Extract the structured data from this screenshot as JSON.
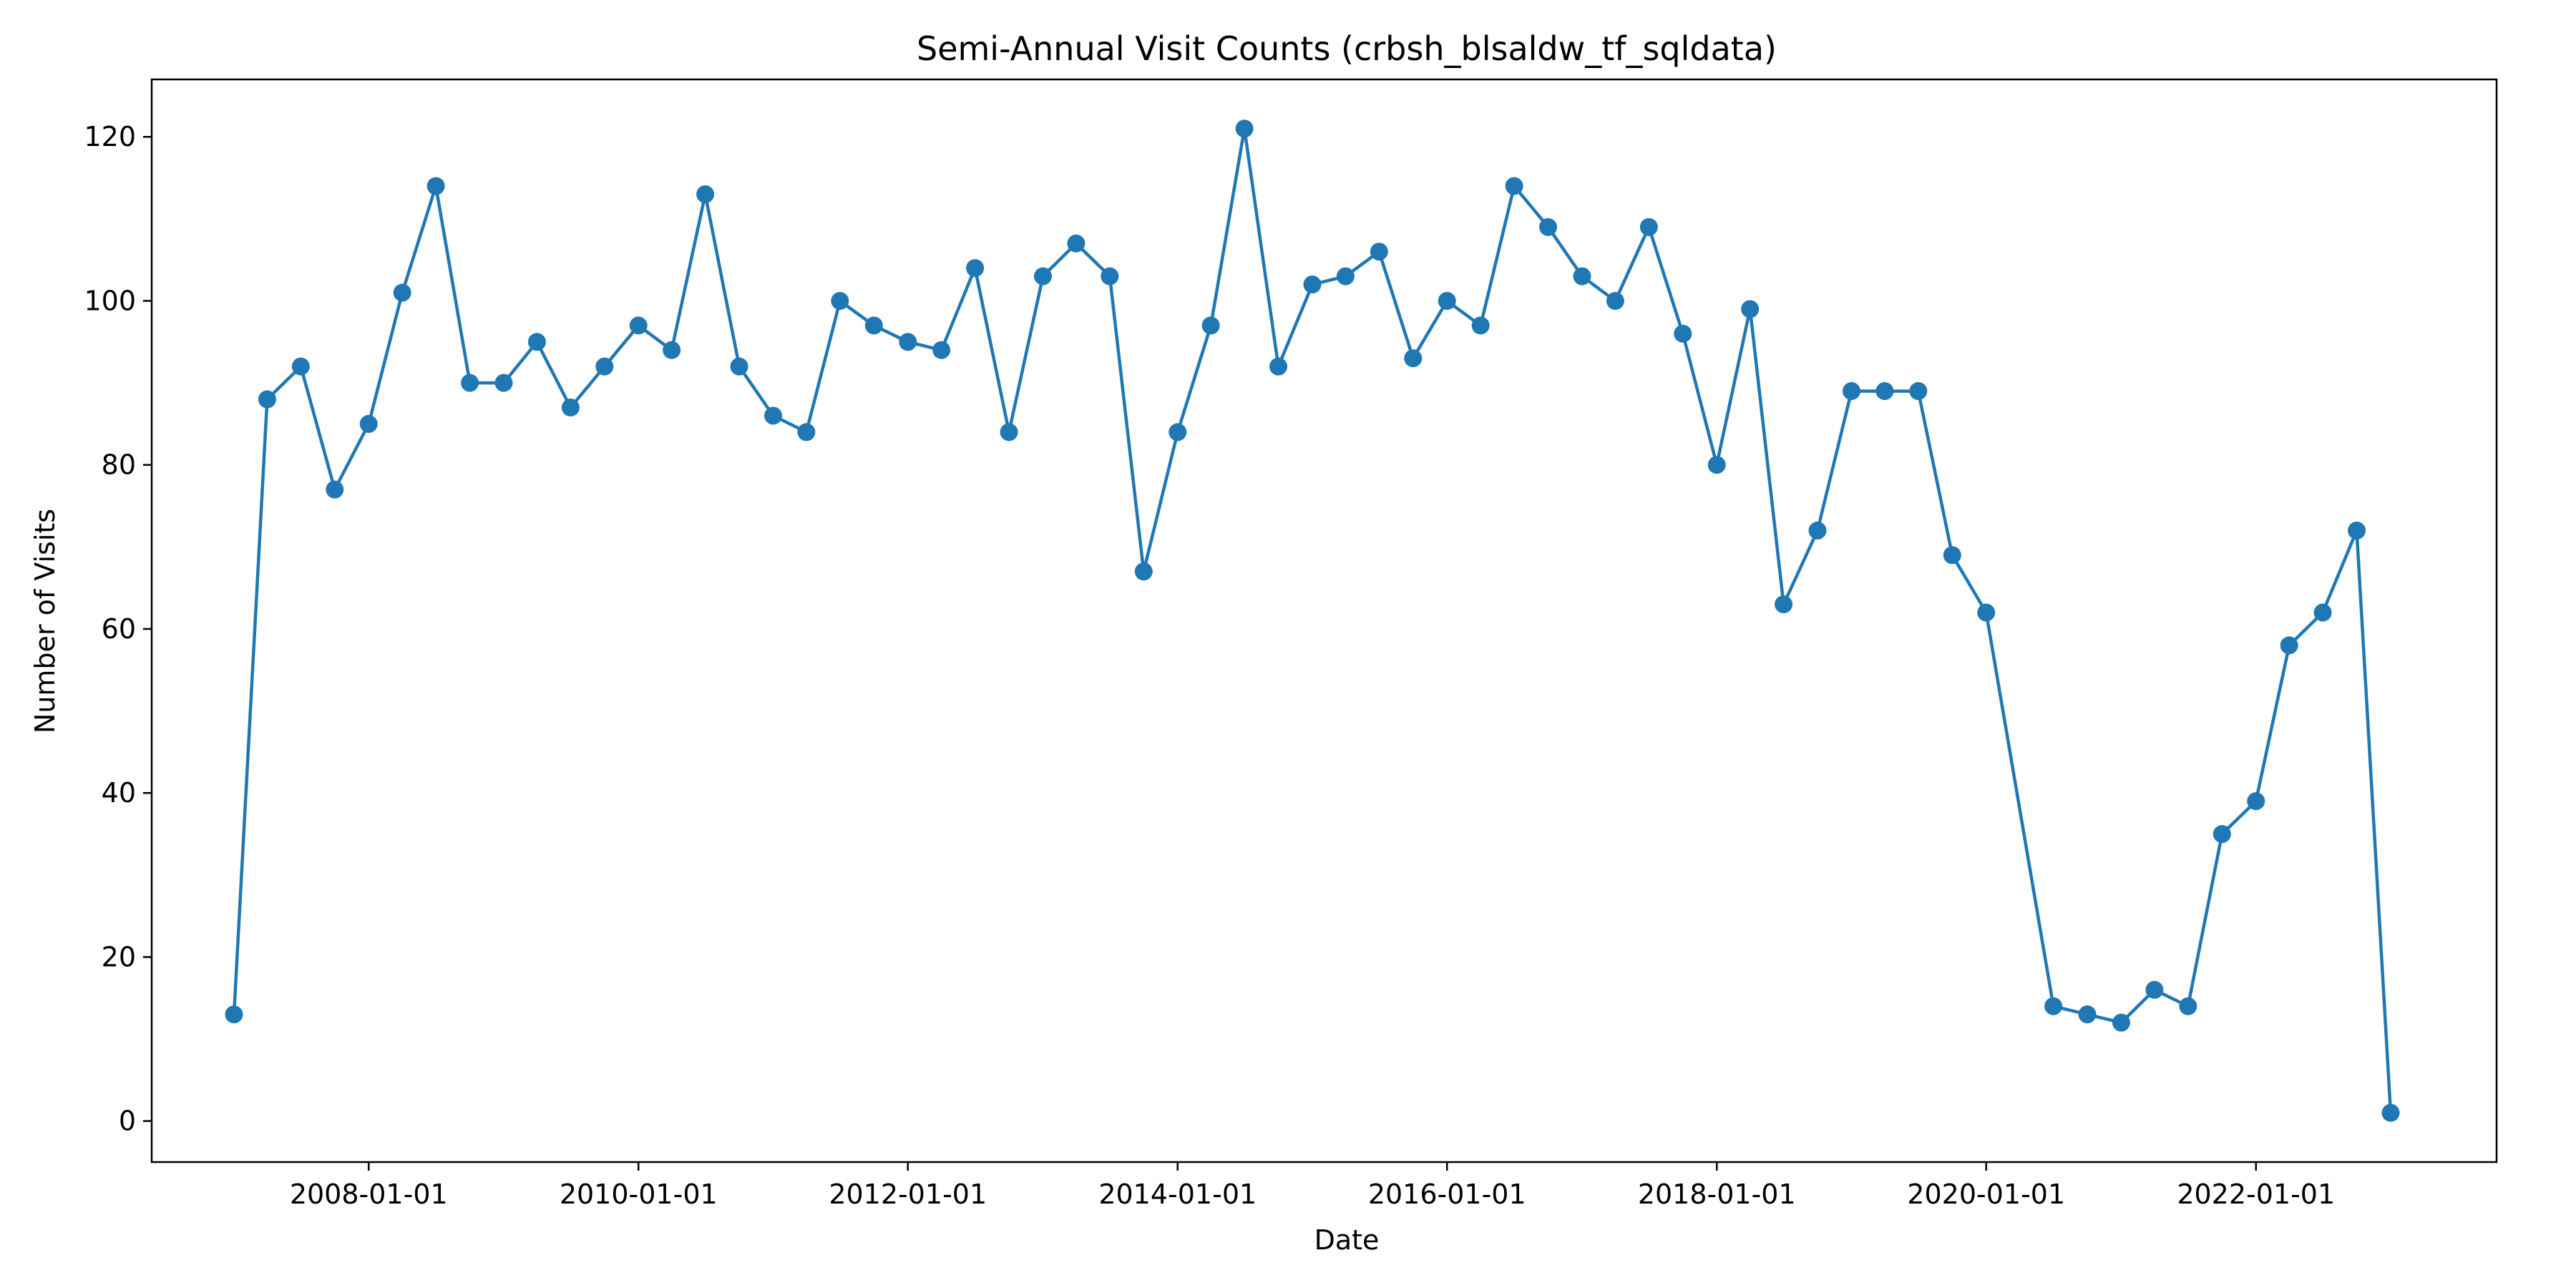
{
  "chart_data": {
    "type": "line",
    "title": "Semi-Annual Visit Counts (crbsh_blsaldw_tf_sqldata)",
    "xlabel": "Date",
    "ylabel": "Number of Visits",
    "xlim": [
      "2006-05-23",
      "2023-10-15"
    ],
    "ylim": [
      -5,
      127
    ],
    "yticks": [
      0,
      20,
      40,
      60,
      80,
      100,
      120
    ],
    "xticks": [
      "2008-01-01",
      "2010-01-01",
      "2012-01-01",
      "2014-01-01",
      "2016-01-01",
      "2018-01-01",
      "2020-01-01",
      "2022-01-01"
    ],
    "grid": false,
    "color": "#1f77b4",
    "series": [
      {
        "x": [
          "2007-01-01",
          "2007-04-01",
          "2007-07-01",
          "2007-10-01",
          "2008-01-01",
          "2008-04-01",
          "2008-07-01",
          "2008-10-01",
          "2009-01-01",
          "2009-04-01",
          "2009-07-01",
          "2009-10-01",
          "2010-01-01",
          "2010-04-01",
          "2010-07-01",
          "2010-10-01",
          "2011-01-01",
          "2011-04-01",
          "2011-07-01",
          "2011-10-01",
          "2012-01-01",
          "2012-04-01",
          "2012-07-01",
          "2012-10-01",
          "2013-01-01",
          "2013-04-01",
          "2013-07-01",
          "2013-10-01",
          "2014-01-01",
          "2014-04-01",
          "2014-07-01",
          "2014-10-01",
          "2015-01-01",
          "2015-04-01",
          "2015-07-01",
          "2015-10-01",
          "2016-01-01",
          "2016-04-01",
          "2016-07-01",
          "2016-10-01",
          "2017-01-01",
          "2017-04-01",
          "2017-07-01",
          "2017-10-01",
          "2018-01-01",
          "2018-04-01",
          "2018-07-01",
          "2018-10-01",
          "2019-01-01",
          "2019-04-01",
          "2019-07-01",
          "2019-10-01",
          "2020-01-01",
          "2020-07-01",
          "2020-10-01",
          "2021-01-01",
          "2021-04-01",
          "2021-07-01",
          "2021-10-01",
          "2022-01-01",
          "2022-04-01",
          "2022-07-01",
          "2022-10-01",
          "2023-01-01"
        ],
        "values": [
          13,
          88,
          92,
          77,
          85,
          101,
          114,
          90,
          90,
          95,
          87,
          92,
          97,
          94,
          113,
          92,
          86,
          84,
          100,
          97,
          95,
          94,
          104,
          84,
          103,
          107,
          103,
          67,
          84,
          97,
          121,
          92,
          102,
          103,
          106,
          93,
          100,
          97,
          114,
          109,
          103,
          100,
          109,
          96,
          80,
          99,
          63,
          72,
          89,
          89,
          89,
          69,
          62,
          14,
          13,
          12,
          16,
          14,
          35,
          39,
          58,
          62,
          72,
          1
        ]
      }
    ]
  }
}
